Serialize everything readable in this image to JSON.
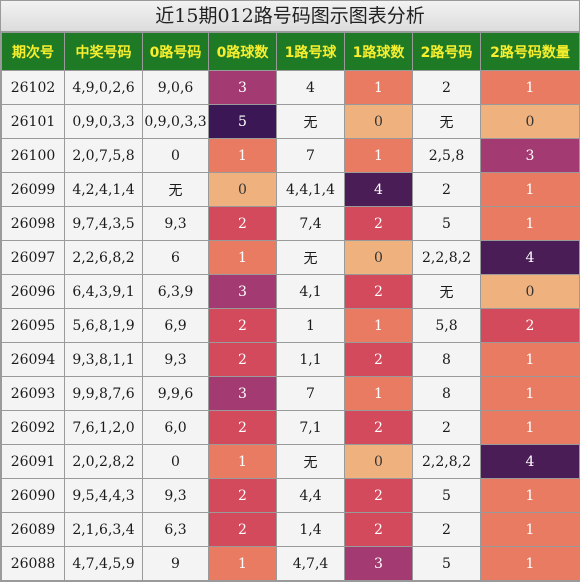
{
  "title": "近15期012路号码图示图表分析",
  "colors": {
    "header_bg": "#1f7a25",
    "header_text": "#f7ee2e",
    "count_colors": {
      "0": "#efb27f",
      "1": "#e97b62",
      "2": "#d34a5c",
      "3": "#a33a72",
      "4": "#4b1d56",
      "5": "#3b1855"
    }
  },
  "chart_data": {
    "type": "table",
    "columns": [
      "期次号",
      "中奖号码",
      "0路号码",
      "0路球数",
      "1路号球",
      "1路球数",
      "2路号码",
      "2路号码数量"
    ],
    "rows": [
      [
        "26102",
        "4,9,0,2,6",
        "9,0,6",
        "3",
        "4",
        "1",
        "2",
        "1"
      ],
      [
        "26101",
        "0,9,0,3,3",
        "0,9,0,3,3",
        "5",
        "无",
        "0",
        "无",
        "0"
      ],
      [
        "26100",
        "2,0,7,5,8",
        "0",
        "1",
        "7",
        "1",
        "2,5,8",
        "3"
      ],
      [
        "26099",
        "4,2,4,1,4",
        "无",
        "0",
        "4,4,1,4",
        "4",
        "2",
        "1"
      ],
      [
        "26098",
        "9,7,4,3,5",
        "9,3",
        "2",
        "7,4",
        "2",
        "5",
        "1"
      ],
      [
        "26097",
        "2,2,6,8,2",
        "6",
        "1",
        "无",
        "0",
        "2,2,8,2",
        "4"
      ],
      [
        "26096",
        "6,4,3,9,1",
        "6,3,9",
        "3",
        "4,1",
        "2",
        "无",
        "0"
      ],
      [
        "26095",
        "5,6,8,1,9",
        "6,9",
        "2",
        "1",
        "1",
        "5,8",
        "2"
      ],
      [
        "26094",
        "9,3,8,1,1",
        "9,3",
        "2",
        "1,1",
        "2",
        "8",
        "1"
      ],
      [
        "26093",
        "9,9,8,7,6",
        "9,9,6",
        "3",
        "7",
        "1",
        "8",
        "1"
      ],
      [
        "26092",
        "7,6,1,2,0",
        "6,0",
        "2",
        "7,1",
        "2",
        "2",
        "1"
      ],
      [
        "26091",
        "2,0,2,8,2",
        "0",
        "1",
        "无",
        "0",
        "2,2,8,2",
        "4"
      ],
      [
        "26090",
        "9,5,4,4,3",
        "9,3",
        "2",
        "4,4",
        "2",
        "5",
        "1"
      ],
      [
        "26089",
        "2,1,6,3,4",
        "6,3",
        "2",
        "1,4",
        "2",
        "2",
        "1"
      ],
      [
        "26088",
        "4,7,4,5,9",
        "9",
        "1",
        "4,7,4",
        "3",
        "5",
        "1"
      ]
    ]
  }
}
